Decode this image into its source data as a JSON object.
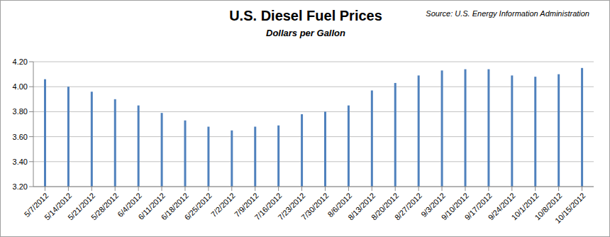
{
  "chart_data": {
    "type": "bar",
    "title": "U.S. Diesel Fuel Prices",
    "subtitle": "Dollars per Gallon",
    "annotations": [
      "Source: U.S. Energy Information Administration"
    ],
    "categories": [
      "5/7/2012",
      "5/14/2012",
      "5/21/2012",
      "5/28/2012",
      "6/4/2012",
      "6/11/2012",
      "6/18/2012",
      "6/25/2012",
      "7/2/2012",
      "7/9/2012",
      "7/16/2012",
      "7/23/2012",
      "7/30/2012",
      "8/6/2012",
      "8/13/2012",
      "8/20/2012",
      "8/27/2012",
      "9/3/2012",
      "9/10/2012",
      "9/17/2012",
      "9/24/2012",
      "10/1/2012",
      "10/8/2012",
      "10/15/2012"
    ],
    "values": [
      4.06,
      4.0,
      3.96,
      3.9,
      3.85,
      3.79,
      3.73,
      3.68,
      3.65,
      3.68,
      3.69,
      3.78,
      3.8,
      3.85,
      3.97,
      4.03,
      4.09,
      4.13,
      4.14,
      4.14,
      4.09,
      4.08,
      4.1,
      4.15
    ],
    "color": "#4f81bd",
    "ylim": [
      3.2,
      4.2
    ],
    "yticks": [
      {
        "value": 3.2,
        "label": "3.20"
      },
      {
        "value": 3.4,
        "label": "3.40"
      },
      {
        "value": 3.6,
        "label": "3.60"
      },
      {
        "value": 3.8,
        "label": "3.80"
      },
      {
        "value": 4.0,
        "label": "4.00"
      },
      {
        "value": 4.2,
        "label": "4.20"
      }
    ],
    "grid": true
  }
}
